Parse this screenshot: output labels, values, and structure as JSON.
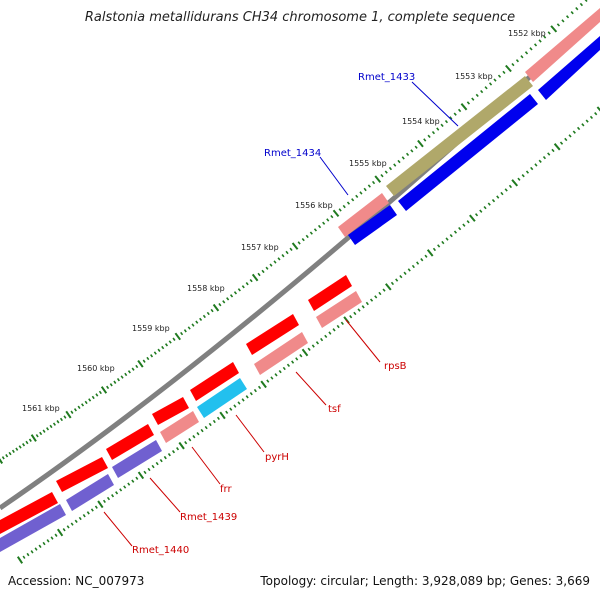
{
  "title": "Ralstonia metallidurans CH34 chromosome 1, complete sequence",
  "footer": {
    "accession": "Accession: NC_007973",
    "topology": "Topology: circular; Length: 3,928,089 bp; Genes: 3,669"
  },
  "colors": {
    "backbone": "#808080",
    "tick": "#1f7a1f",
    "blue_label": "#0000cc",
    "red_label": "#cc0000",
    "forward_gene": "#ff0000",
    "forward_gene_light": "#f08a8a",
    "reverse_gene": "#0000ee",
    "reverse_gene_light": "#7060d0",
    "olive": "#b0a86a",
    "cyan": "#22c0ee"
  },
  "ruler_labels": [
    "1552 kbp",
    "1553 kbp",
    "1554 kbp",
    "1555 kbp",
    "1556 kbp",
    "1557 kbp",
    "1558 kbp",
    "1559 kbp",
    "1560 kbp",
    "1561 kbp"
  ],
  "gene_labels": [
    "Rmet_1433",
    "Rmet_1434",
    "rpsB",
    "tsf",
    "pyrH",
    "frr",
    "Rmet_1439",
    "Rmet_1440"
  ]
}
